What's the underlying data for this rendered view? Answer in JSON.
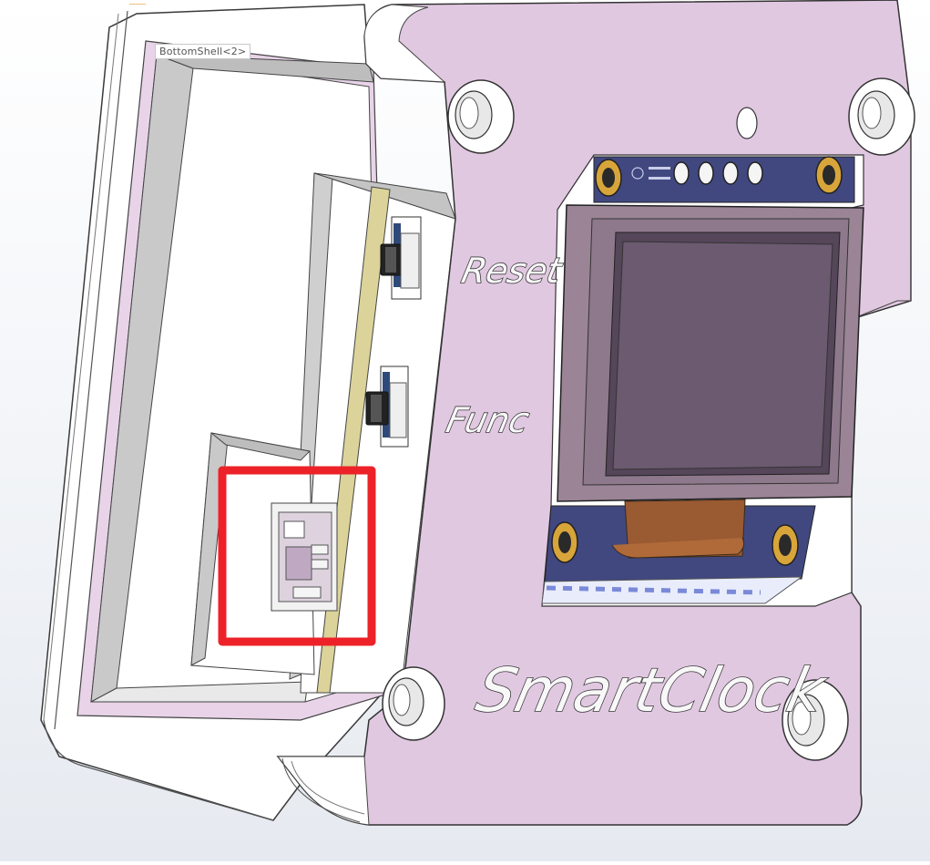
{
  "tooltip": {
    "label": "BottomShell<2>"
  },
  "engravings": {
    "reset": "Reset",
    "func": "Func",
    "brand": "SmartClock"
  },
  "icons": {
    "mounting_holes": "mount-hole-icon",
    "highlight": "selection-box"
  },
  "colors": {
    "lid_face": "#e1c8e1",
    "shell_white": "#ffffff",
    "pcb_blue": "#414880",
    "oled_frame": "#9a8496",
    "oled_screen": "#6b5a70",
    "flex_cable": "#9a5a32",
    "gold_pad": "#d8a53a",
    "highlight_red": "#ed2228",
    "board_yellow": "#dbd39a"
  }
}
